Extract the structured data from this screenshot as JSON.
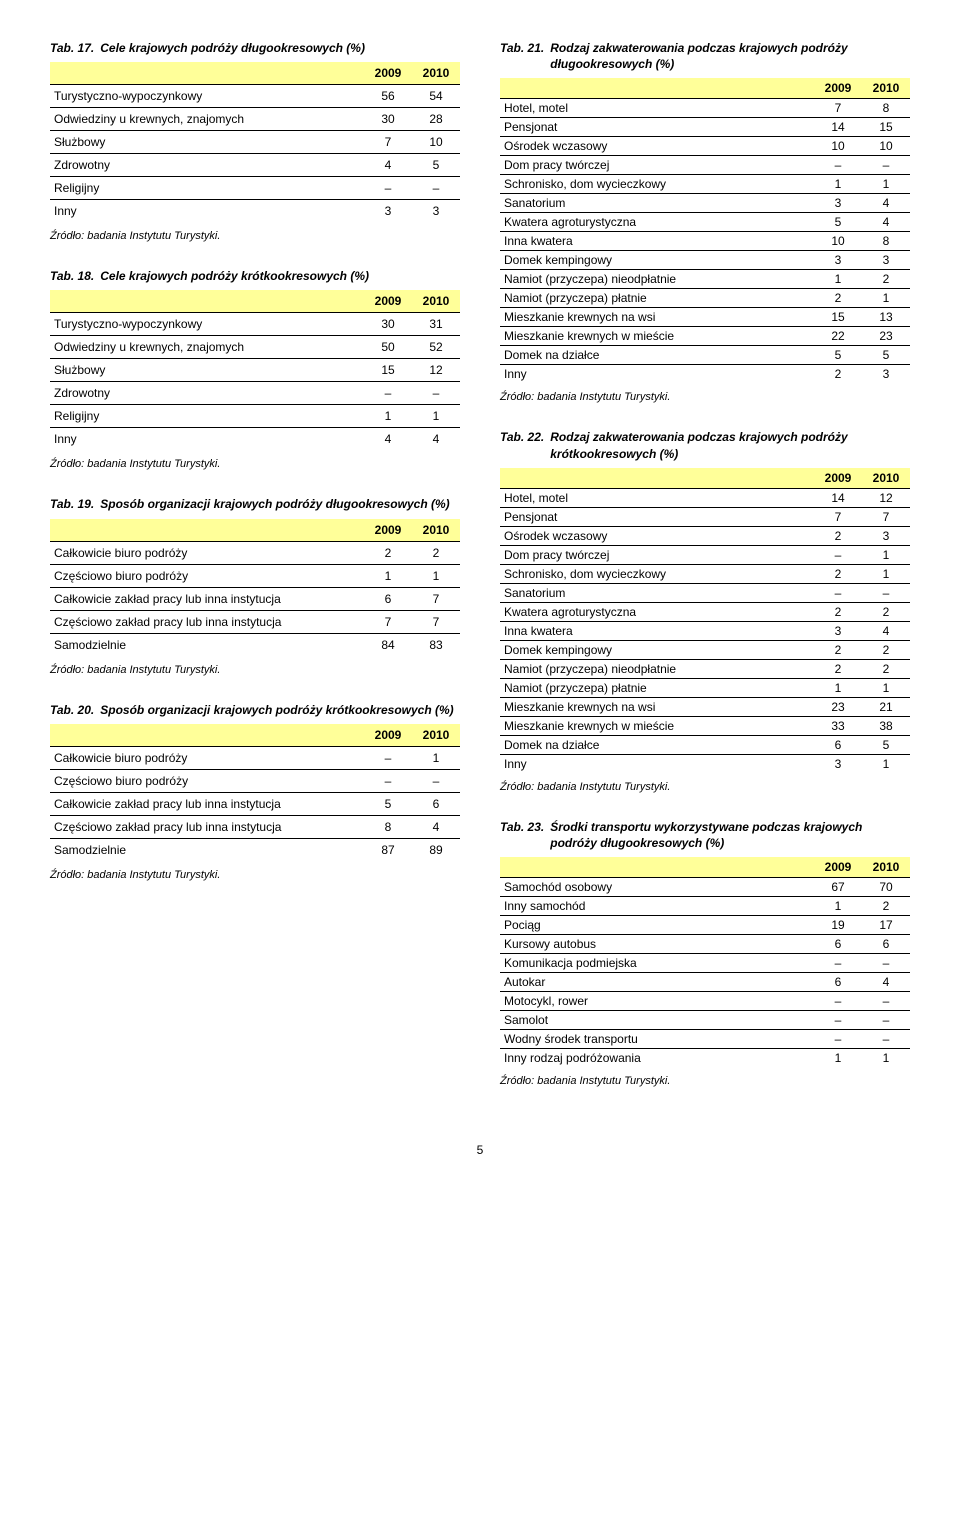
{
  "source_note": "Źródło: badania Instytutu Turystyki.",
  "page_number": "5",
  "col_headers": [
    "2009",
    "2010"
  ],
  "tables": {
    "t17": {
      "tabno": "Tab. 17.",
      "title": "Cele krajowych podróży długookresowych (%)",
      "rows": [
        [
          "Turystyczno-wypoczynkowy",
          "56",
          "54"
        ],
        [
          "Odwiedziny u krewnych, znajomych",
          "30",
          "28"
        ],
        [
          "Służbowy",
          "7",
          "10"
        ],
        [
          "Zdrowotny",
          "4",
          "5"
        ],
        [
          "Religijny",
          "–",
          "–"
        ],
        [
          "Inny",
          "3",
          "3"
        ]
      ]
    },
    "t18": {
      "tabno": "Tab. 18.",
      "title": "Cele krajowych podróży krótkookresowych (%)",
      "rows": [
        [
          "Turystyczno-wypoczynkowy",
          "30",
          "31"
        ],
        [
          "Odwiedziny u krewnych, znajomych",
          "50",
          "52"
        ],
        [
          "Służbowy",
          "15",
          "12"
        ],
        [
          "Zdrowotny",
          "–",
          "–"
        ],
        [
          "Religijny",
          "1",
          "1"
        ],
        [
          "Inny",
          "4",
          "4"
        ]
      ]
    },
    "t19": {
      "tabno": "Tab. 19.",
      "title": "Sposób organizacji krajowych podróży długookresowych (%)",
      "rows": [
        [
          "Całkowicie biuro podróży",
          "2",
          "2"
        ],
        [
          "Częściowo biuro podróży",
          "1",
          "1"
        ],
        [
          "Całkowicie zakład pracy lub inna instytucja",
          "6",
          "7"
        ],
        [
          "Częściowo zakład pracy lub inna instytucja",
          "7",
          "7"
        ],
        [
          "Samodzielnie",
          "84",
          "83"
        ]
      ]
    },
    "t20": {
      "tabno": "Tab. 20.",
      "title": "Sposób organizacji krajowych podróży krótkookresowych (%)",
      "rows": [
        [
          "Całkowicie biuro podróży",
          "–",
          "1"
        ],
        [
          "Częściowo biuro podróży",
          "–",
          "–"
        ],
        [
          "Całkowicie zakład pracy lub inna instytucja",
          "5",
          "6"
        ],
        [
          "Częściowo zakład pracy lub inna instytucja",
          "8",
          "4"
        ],
        [
          "Samodzielnie",
          "87",
          "89"
        ]
      ]
    },
    "t21": {
      "tabno": "Tab. 21.",
      "title": "Rodzaj zakwaterowania podczas krajowych podróży długookresowych (%)",
      "rows": [
        [
          "Hotel, motel",
          "7",
          "8"
        ],
        [
          "Pensjonat",
          "14",
          "15"
        ],
        [
          "Ośrodek wczasowy",
          "10",
          "10"
        ],
        [
          "Dom pracy twórczej",
          "–",
          "–"
        ],
        [
          "Schronisko, dom wycieczkowy",
          "1",
          "1"
        ],
        [
          "Sanatorium",
          "3",
          "4"
        ],
        [
          "Kwatera agroturystyczna",
          "5",
          "4"
        ],
        [
          "Inna kwatera",
          "10",
          "8"
        ],
        [
          "Domek kempingowy",
          "3",
          "3"
        ],
        [
          "Namiot (przyczepa) nieodpłatnie",
          "1",
          "2"
        ],
        [
          "Namiot (przyczepa) płatnie",
          "2",
          "1"
        ],
        [
          "Mieszkanie krewnych na wsi",
          "15",
          "13"
        ],
        [
          "Mieszkanie krewnych w mieście",
          "22",
          "23"
        ],
        [
          "Domek na działce",
          "5",
          "5"
        ],
        [
          "Inny",
          "2",
          "3"
        ]
      ]
    },
    "t22": {
      "tabno": "Tab. 22.",
      "title": "Rodzaj zakwaterowania podczas krajowych podróży krótkookresowych (%)",
      "rows": [
        [
          "Hotel, motel",
          "14",
          "12"
        ],
        [
          "Pensjonat",
          "7",
          "7"
        ],
        [
          "Ośrodek wczasowy",
          "2",
          "3"
        ],
        [
          "Dom pracy twórczej",
          "–",
          "1"
        ],
        [
          "Schronisko, dom wycieczkowy",
          "2",
          "1"
        ],
        [
          "Sanatorium",
          "–",
          "–"
        ],
        [
          "Kwatera agroturystyczna",
          "2",
          "2"
        ],
        [
          "Inna kwatera",
          "3",
          "4"
        ],
        [
          "Domek kempingowy",
          "2",
          "2"
        ],
        [
          "Namiot (przyczepa) nieodpłatnie",
          "2",
          "2"
        ],
        [
          "Namiot (przyczepa) płatnie",
          "1",
          "1"
        ],
        [
          "Mieszkanie krewnych na wsi",
          "23",
          "21"
        ],
        [
          "Mieszkanie krewnych w mieście",
          "33",
          "38"
        ],
        [
          "Domek na działce",
          "6",
          "5"
        ],
        [
          "Inny",
          "3",
          "1"
        ]
      ]
    },
    "t23": {
      "tabno": "Tab. 23.",
      "title": "Środki transportu wykorzystywane podczas krajowych podróży długookresowych (%)",
      "rows": [
        [
          "Samochód osobowy",
          "67",
          "70"
        ],
        [
          "Inny samochód",
          "1",
          "2"
        ],
        [
          "Pociąg",
          "19",
          "17"
        ],
        [
          "Kursowy autobus",
          "6",
          "6"
        ],
        [
          "Komunikacja podmiejska",
          "–",
          "–"
        ],
        [
          "Autokar",
          "6",
          "4"
        ],
        [
          "Motocykl, rower",
          "–",
          "–"
        ],
        [
          "Samolot",
          "–",
          "–"
        ],
        [
          "Wodny środek transportu",
          "–",
          "–"
        ],
        [
          "Inny rodzaj podróżowania",
          "1",
          "1"
        ]
      ]
    }
  }
}
